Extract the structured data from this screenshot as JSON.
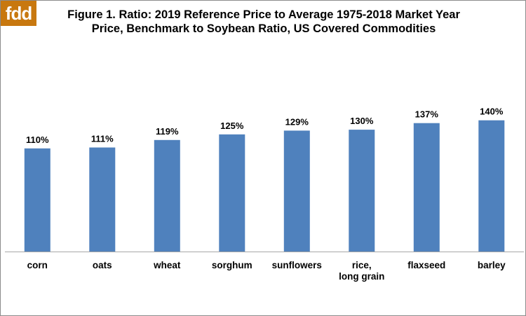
{
  "logo": {
    "text": "fdd",
    "color": "#c8780f"
  },
  "chart_data": {
    "type": "bar",
    "title": "Figure 1.  Ratio: 2019 Reference Price to Average 1975-2018 Market Year\nPrice, Benchmark to Soybean Ratio, US Covered Commodities",
    "categories": [
      [
        "corn"
      ],
      [
        "oats"
      ],
      [
        "wheat"
      ],
      [
        "sorghum"
      ],
      [
        "sunflowers"
      ],
      [
        "rice,",
        "long grain"
      ],
      [
        "flaxseed"
      ],
      [
        "barley"
      ]
    ],
    "values": [
      110,
      111,
      119,
      125,
      129,
      130,
      137,
      140
    ],
    "data_labels": [
      "110%",
      "111%",
      "119%",
      "125%",
      "129%",
      "130%",
      "137%",
      "140%"
    ],
    "unit": "%",
    "xlabel": "",
    "ylabel": "",
    "ylim": [
      0,
      160
    ],
    "grid": false,
    "legend": "none",
    "bar_color": "#4f81bd",
    "axis_color": "#a6a6a6"
  }
}
